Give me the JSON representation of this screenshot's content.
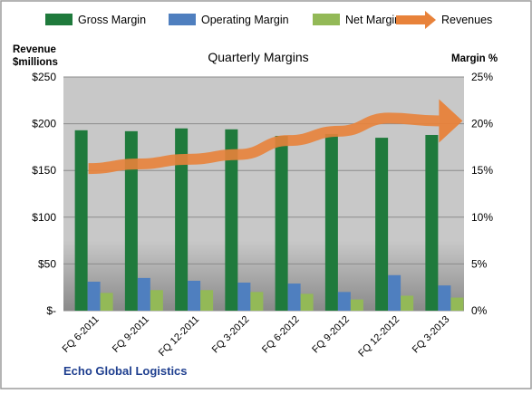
{
  "chart_data": {
    "type": "bar",
    "title": "Quarterly Margins",
    "source_label": "Echo Global Logistics",
    "left_axis_label": [
      "Revenue",
      "$millions"
    ],
    "right_axis_label": "Margin %",
    "categories": [
      "FQ 6-2011",
      "FQ 9-2011",
      "FQ 12-2011",
      "FQ 3-2012",
      "FQ 6-2012",
      "FQ 9-2012",
      "FQ 12-2012",
      "FQ 3-2013"
    ],
    "left_axis": {
      "min": 0,
      "max": 250,
      "ticks": [
        0,
        50,
        100,
        150,
        200,
        250
      ],
      "tick_labels": [
        "$-",
        "$50",
        "$100",
        "$150",
        "$200",
        "$250"
      ]
    },
    "right_axis": {
      "min": 0,
      "max": 25,
      "ticks": [
        0,
        5,
        10,
        15,
        20,
        25
      ],
      "tick_labels": [
        "0%",
        "5%",
        "10%",
        "15%",
        "20%",
        "25%"
      ]
    },
    "legend_position": "top",
    "grid": true,
    "series": [
      {
        "name": "Gross Margin",
        "axis": "right",
        "type": "bar",
        "color": "#1F7A3C",
        "values": [
          19.3,
          19.2,
          19.5,
          19.4,
          18.7,
          18.9,
          18.5,
          18.8
        ]
      },
      {
        "name": "Operating Margin",
        "axis": "right",
        "type": "bar",
        "color": "#4F7FBF",
        "values": [
          3.1,
          3.5,
          3.2,
          3.0,
          2.9,
          2.0,
          3.8,
          2.7
        ]
      },
      {
        "name": "Net Margin",
        "axis": "right",
        "type": "bar",
        "color": "#93B957",
        "values": [
          1.9,
          2.2,
          2.2,
          2.0,
          1.8,
          1.2,
          1.6,
          1.4
        ]
      },
      {
        "name": "Revenues",
        "axis": "left",
        "type": "arrow-line",
        "color": "#E8823A",
        "values": [
          152,
          157,
          162,
          167,
          182,
          192,
          206,
          203
        ]
      }
    ]
  }
}
